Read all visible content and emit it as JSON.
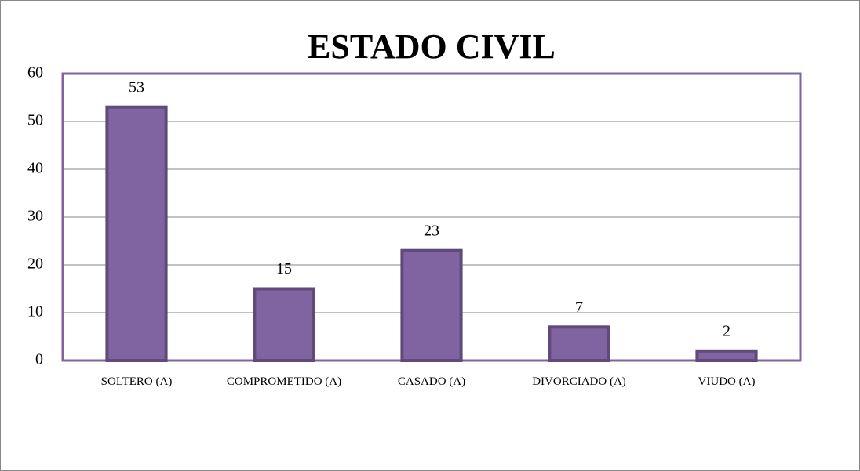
{
  "chart_data": {
    "type": "bar",
    "title": "ESTADO CIVIL",
    "categories": [
      "SOLTERO (A)",
      "COMPROMETIDO (A)",
      "CASADO (A)",
      "DIVORCIADO (A)",
      "VIUDO (A)"
    ],
    "values": [
      53,
      15,
      23,
      7,
      2
    ],
    "color": "#8064a2",
    "ylim": [
      0,
      60
    ],
    "yticks": [
      0,
      10,
      20,
      30,
      40,
      50,
      60
    ],
    "grid": true
  }
}
